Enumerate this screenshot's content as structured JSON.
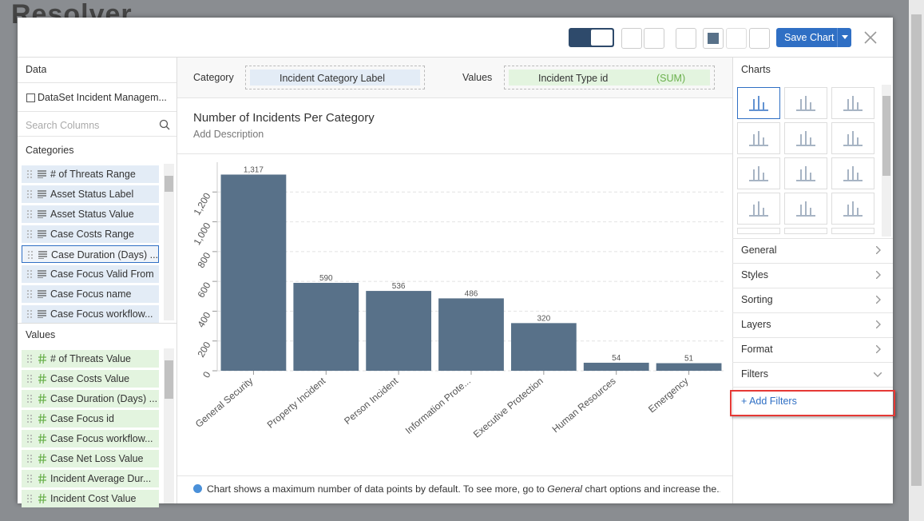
{
  "background": {
    "logo": "Resolver"
  },
  "toolbar": {
    "save_button": "Save Chart"
  },
  "data_panel": {
    "title": "Data",
    "dataset": "DataSet Incident Managem...",
    "search_placeholder": "Search Columns",
    "categories_title": "Categories",
    "categories": [
      "# of Threats Range",
      "Asset Status Label",
      "Asset Status Value",
      "Case Costs Range",
      "Case Duration (Days) ...",
      "Case Focus Valid From",
      "Case Focus name",
      "Case Focus workflow..."
    ],
    "values_title": "Values",
    "values": [
      "# of Threats Value",
      "Case Costs Value",
      "Case Duration (Days) ...",
      "Case Focus id",
      "Case Focus workflow...",
      "Case Net Loss Value",
      "Incident Average Dur...",
      "Incident Cost Value"
    ]
  },
  "fields": {
    "category_label": "Category",
    "category_field": "Incident Category Label",
    "values_label": "Values",
    "values_field": "Incident Type id",
    "aggregation": "(SUM)"
  },
  "chart_data": {
    "type": "bar",
    "title": "Number of Incidents Per Category",
    "subtitle": "Add Description",
    "categories": [
      "General Security",
      "Property Incident",
      "Person Incident",
      "Information Prote...",
      "Executive Protection",
      "Human Resources",
      "Emergency"
    ],
    "values": [
      1317,
      590,
      536,
      486,
      320,
      54,
      51
    ],
    "value_labels": [
      "1,317",
      "590",
      "536",
      "486",
      "320",
      "54",
      "51"
    ],
    "color": "#587189",
    "ylim": [
      0,
      1400
    ],
    "yticks": [
      0,
      200,
      400,
      600,
      800,
      {
        "value": 1000,
        "label": "1,000"
      },
      {
        "value": 1200,
        "label": "1,200"
      }
    ],
    "grid": true
  },
  "note": {
    "text_before": "Chart shows a maximum number of data points by default. To see more, go to ",
    "emphasis": "General",
    "text_after": " chart options and increase the..."
  },
  "right_panel": {
    "charts_title": "Charts",
    "sections": [
      "General",
      "Styles",
      "Sorting",
      "Layers",
      "Format",
      "Filters"
    ],
    "add_filters": "+ Add Filters"
  }
}
